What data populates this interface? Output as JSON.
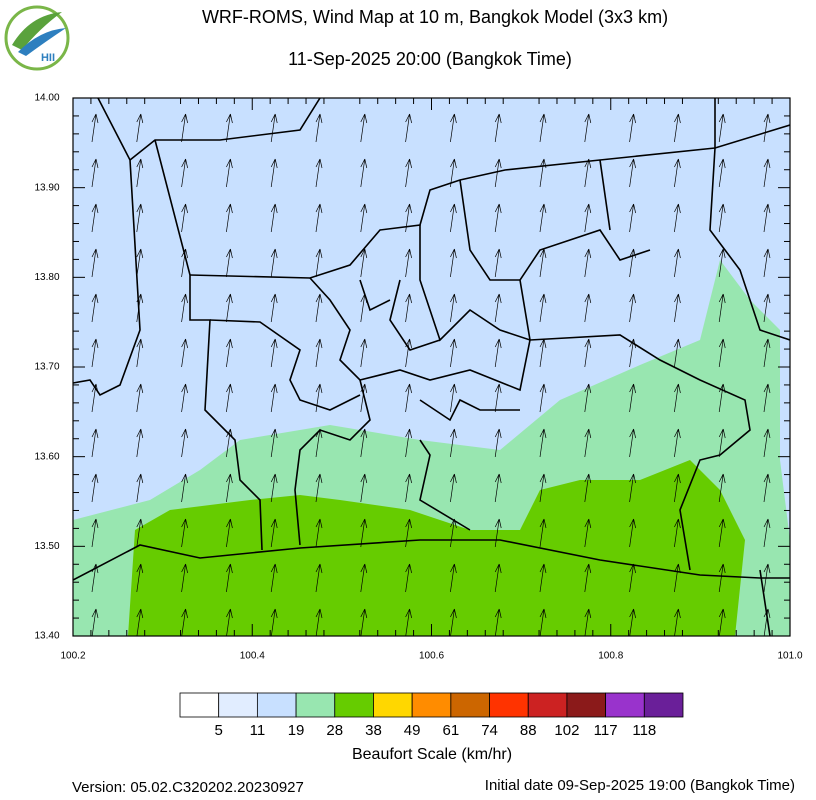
{
  "header": {
    "logo_text": "HII",
    "title": "WRF-ROMS, Wind Map at 10 m, Bangkok Model (3x3 km)",
    "subtitle": "11-Sep-2025 20:00 (Bangkok Time)"
  },
  "map": {
    "xlim": [
      100.2,
      101
    ],
    "ylim": [
      13.4,
      14
    ],
    "xticks": [
      100.2,
      100.4,
      100.6,
      100.8,
      {
        "value": 101,
        "label": "101.0"
      }
    ],
    "yticks": [
      {
        "value": 14,
        "label": "14.00"
      },
      {
        "value": 13.9,
        "label": "13.90"
      },
      {
        "value": 13.8,
        "label": "13.80"
      },
      {
        "value": 13.7,
        "label": "13.70"
      },
      {
        "value": 13.6,
        "label": "13.60"
      },
      {
        "value": 13.5,
        "label": "13.50"
      },
      {
        "value": 13.4,
        "label": "13.40"
      }
    ]
  },
  "colorbar": {
    "title": "Beaufort Scale (km/hr)",
    "colors": [
      "#ffffff",
      "#e1edff",
      "#c8e0ff",
      "#98e6b0",
      "#66cc00",
      "#ffd700",
      "#ff8c00",
      "#cc6600",
      "#ff3300",
      "#cc2222",
      "#8b1a1a",
      "#9933cc",
      "#6a1f99"
    ],
    "labels": [
      5,
      11,
      19,
      28,
      38,
      49,
      61,
      74,
      88,
      102,
      117,
      118
    ]
  },
  "footer": {
    "version": "Version: 05.02.C320202.20230927",
    "initial_date": "Initial date 09-Sep-2025 19:00 (Bangkok Time)"
  }
}
